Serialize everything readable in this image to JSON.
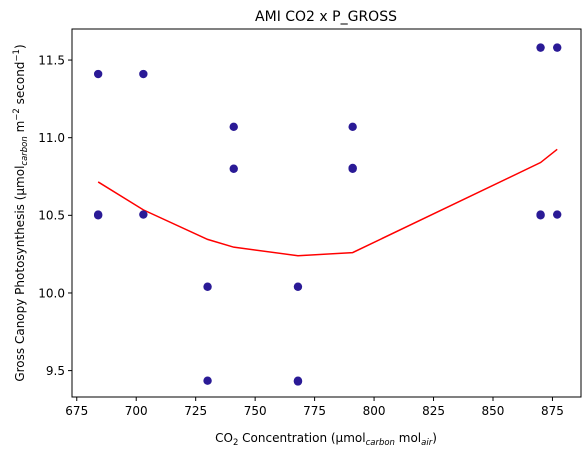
{
  "chart_data": {
    "type": "scatter",
    "title": "AMI CO2 x P_GROSS",
    "xlabel": {
      "pre": "CO",
      "sub": "2",
      "mid": " Concentration (µmol",
      "sub2": "carbon",
      "mid2": " mol",
      "sub3": "air",
      "post": ")"
    },
    "ylabel": {
      "pre": "Gross Canopy Photosynthesis (µmol",
      "sub": "carbon",
      "mid": " m",
      "sup": "−2",
      "mid2": " second",
      "sup2": "−1",
      "post": ")"
    },
    "xlim": [
      673,
      887
    ],
    "ylim": [
      9.33,
      11.7
    ],
    "xticks": [
      675,
      700,
      725,
      750,
      775,
      800,
      825,
      850,
      875
    ],
    "yticks": [
      9.5,
      10.0,
      10.5,
      11.0,
      11.5
    ],
    "ytick_labels": [
      "9.5",
      "10.0",
      "10.5",
      "11.0",
      "11.5"
    ],
    "grid": false,
    "scatter": {
      "color": "#2a1a96",
      "points": [
        {
          "x": 684,
          "y": 11.41
        },
        {
          "x": 684,
          "y": 10.505
        },
        {
          "x": 684,
          "y": 10.5
        },
        {
          "x": 703,
          "y": 11.41
        },
        {
          "x": 703,
          "y": 10.505
        },
        {
          "x": 730,
          "y": 10.04
        },
        {
          "x": 730,
          "y": 9.435
        },
        {
          "x": 741,
          "y": 11.07
        },
        {
          "x": 741,
          "y": 10.8
        },
        {
          "x": 768,
          "y": 10.04
        },
        {
          "x": 768,
          "y": 9.435
        },
        {
          "x": 768,
          "y": 9.43
        },
        {
          "x": 791,
          "y": 11.07
        },
        {
          "x": 791,
          "y": 10.8
        },
        {
          "x": 791,
          "y": 10.805
        },
        {
          "x": 870,
          "y": 11.58
        },
        {
          "x": 870,
          "y": 10.505
        },
        {
          "x": 870,
          "y": 10.5
        },
        {
          "x": 877,
          "y": 11.58
        },
        {
          "x": 877,
          "y": 10.505
        }
      ]
    },
    "trend": {
      "color": "#ff0000",
      "points": [
        {
          "x": 684,
          "y": 10.715
        },
        {
          "x": 703,
          "y": 10.535
        },
        {
          "x": 730,
          "y": 10.345
        },
        {
          "x": 741,
          "y": 10.295
        },
        {
          "x": 768,
          "y": 10.24
        },
        {
          "x": 791,
          "y": 10.26
        },
        {
          "x": 870,
          "y": 10.84
        },
        {
          "x": 877,
          "y": 10.925
        }
      ]
    }
  }
}
